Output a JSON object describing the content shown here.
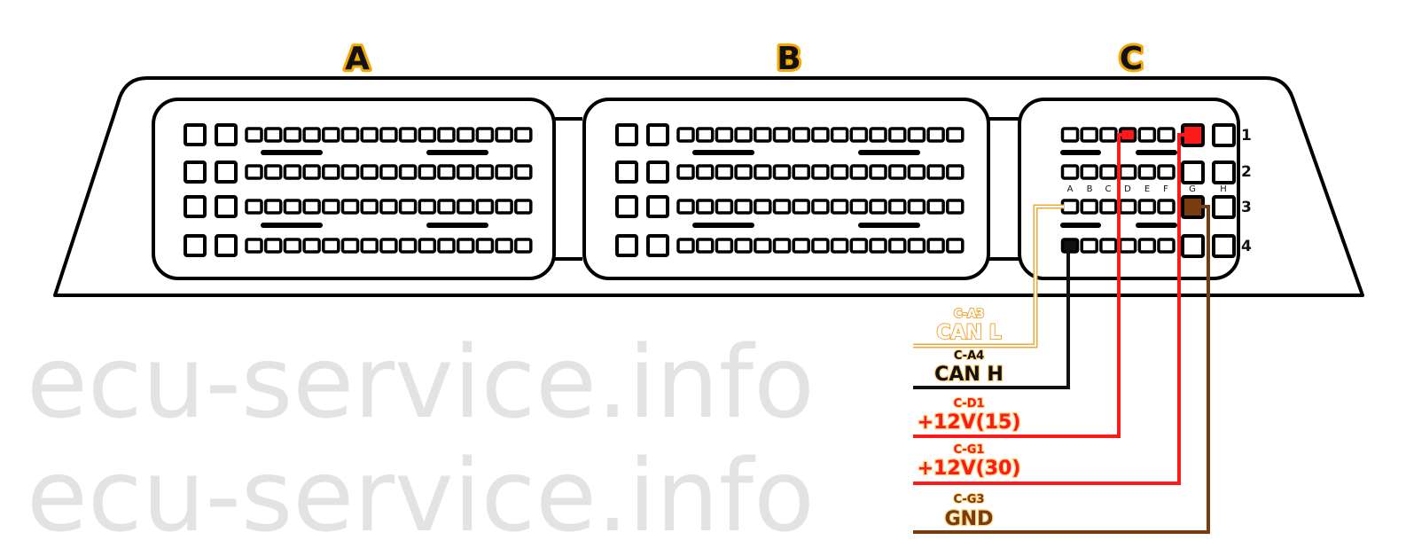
{
  "watermark": "ecu-service.info",
  "connectors": [
    {
      "label": "A"
    },
    {
      "label": "B"
    },
    {
      "label": "C"
    }
  ],
  "connector_c": {
    "columns": [
      "A",
      "B",
      "C",
      "D",
      "E",
      "F",
      "G",
      "H"
    ],
    "rows": [
      "1",
      "2",
      "3",
      "4"
    ]
  },
  "wires": [
    {
      "pin": "C-A3",
      "signal": "CAN L",
      "color": "#f2a93b"
    },
    {
      "pin": "C-A4",
      "signal": "CAN H",
      "color": "#111111"
    },
    {
      "pin": "C-D1",
      "signal": "+12V(15)",
      "color": "#ff1a1a"
    },
    {
      "pin": "C-G1",
      "signal": "+12V(30)",
      "color": "#ff1a1a"
    },
    {
      "pin": "C-G3",
      "signal": "GND",
      "color": "#7a3b0f"
    }
  ]
}
